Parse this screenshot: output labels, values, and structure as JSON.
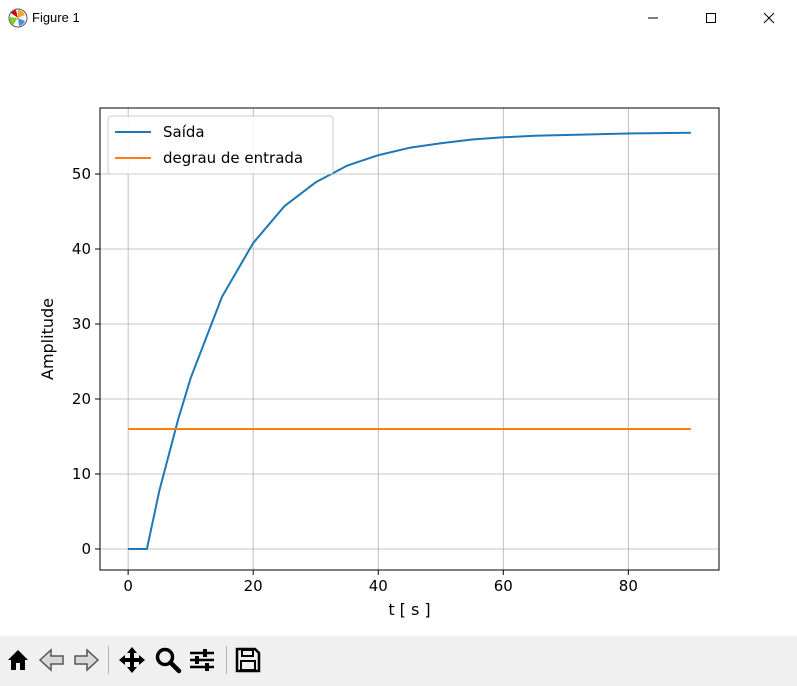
{
  "window": {
    "title": "Figure 1",
    "icons": [
      "matplotlib-logo-icon",
      "minimize-icon",
      "maximize-icon",
      "close-icon"
    ]
  },
  "toolbar": {
    "icons": [
      "home-icon",
      "back-icon",
      "forward-icon",
      "pan-icon",
      "zoom-icon",
      "configure-subplots-icon",
      "save-icon"
    ]
  },
  "chart_data": {
    "type": "line",
    "title": "",
    "xlabel": "t [ s ]",
    "ylabel": "Amplitude",
    "xlim": [
      -4.5,
      94.5
    ],
    "ylim": [
      -2.8,
      58.8
    ],
    "xticks": [
      0,
      20,
      40,
      60,
      80
    ],
    "yticks": [
      0,
      10,
      20,
      30,
      40,
      50
    ],
    "grid": true,
    "legend_position": "upper left",
    "series": [
      {
        "name": "Saída",
        "color": "#1f77b4",
        "x": [
          0,
          3,
          5,
          8,
          10,
          15,
          20,
          25,
          30,
          35,
          40,
          45,
          50,
          55,
          60,
          65,
          70,
          75,
          80,
          85,
          90
        ],
        "y": [
          0,
          0,
          7.8,
          17.3,
          22.8,
          33.6,
          40.8,
          45.7,
          48.9,
          51.1,
          52.5,
          53.5,
          54.1,
          54.6,
          54.9,
          55.1,
          55.2,
          55.3,
          55.4,
          55.45,
          55.5
        ]
      },
      {
        "name": "degrau de entrada",
        "color": "#ff7f0e",
        "x": [
          0,
          90
        ],
        "y": [
          16,
          16
        ]
      }
    ]
  }
}
